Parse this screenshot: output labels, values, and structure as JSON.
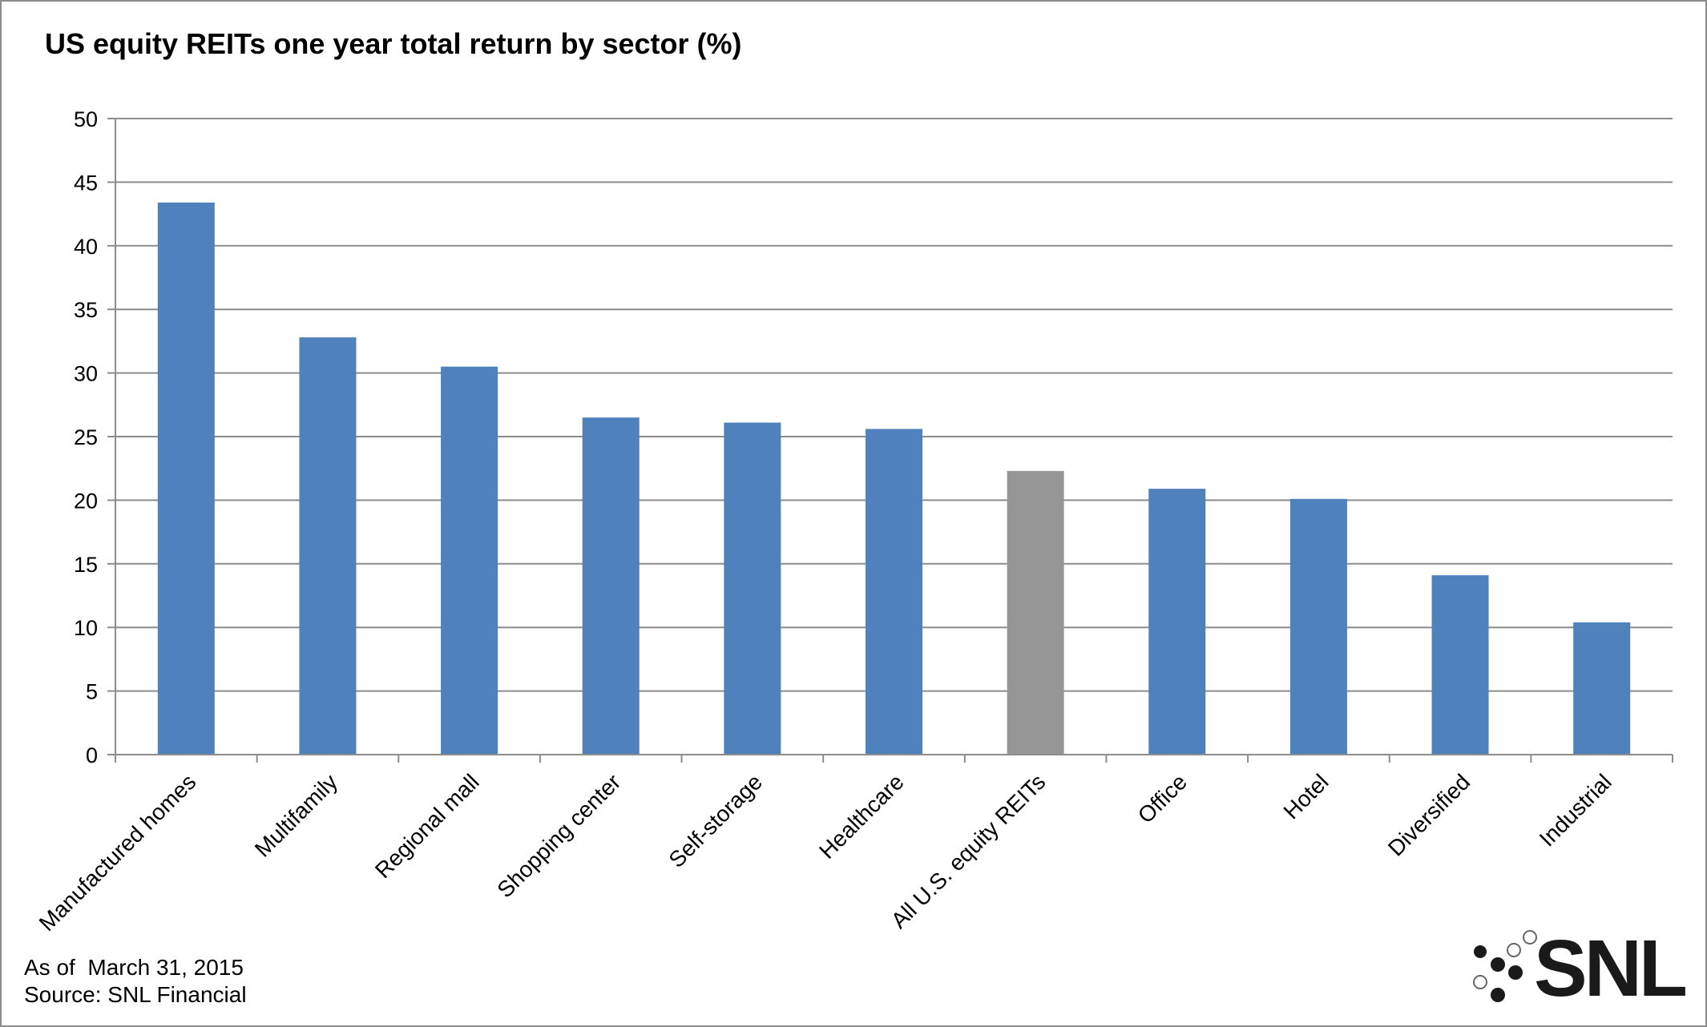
{
  "chart_data": {
    "type": "bar",
    "title": "US equity REITs one year total return by sector (%)",
    "categories": [
      "Manufactured homes",
      "Multifamily",
      "Regional mall",
      "Shopping center",
      "Self-storage",
      "Healthcare",
      "All U.S. equity REITs",
      "Office",
      "Hotel",
      "Diversified",
      "Industrial"
    ],
    "values": [
      43.4,
      32.8,
      30.5,
      26.5,
      26.1,
      25.6,
      22.3,
      20.9,
      20.1,
      14.1,
      10.4
    ],
    "bar_colors": [
      "#4f81bd",
      "#4f81bd",
      "#4f81bd",
      "#4f81bd",
      "#4f81bd",
      "#4f81bd",
      "#969696",
      "#4f81bd",
      "#4f81bd",
      "#4f81bd",
      "#4f81bd"
    ],
    "ylim": [
      0,
      50
    ],
    "yticks": [
      0,
      5,
      10,
      15,
      20,
      25,
      30,
      35,
      40,
      45,
      50
    ],
    "grid": true,
    "xlabel": "",
    "ylabel": ""
  },
  "footnotes": {
    "date": "As of  March 31, 2015",
    "source": "Source: SNL Financial"
  },
  "logo": {
    "text": "SNL"
  }
}
